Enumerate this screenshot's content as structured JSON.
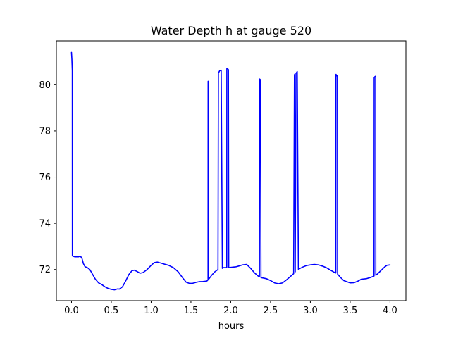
{
  "chart_data": {
    "type": "line",
    "title": "Water Depth h at gauge 520",
    "xlabel": "hours",
    "ylabel": "",
    "xlim": [
      -0.19,
      4.2
    ],
    "ylim": [
      70.65,
      81.9
    ],
    "xticks": [
      0.0,
      0.5,
      1.0,
      1.5,
      2.0,
      2.5,
      3.0,
      3.5,
      4.0
    ],
    "xtick_labels": [
      "0.0",
      "0.5",
      "1.0",
      "1.5",
      "2.0",
      "2.5",
      "3.0",
      "3.5",
      "4.0"
    ],
    "yticks": [
      72,
      74,
      76,
      78,
      80
    ],
    "ytick_labels": [
      "72",
      "74",
      "76",
      "78",
      "80"
    ],
    "grid": false,
    "series": [
      {
        "color": "#0000ff",
        "x": [
          0.0,
          0.005,
          0.01,
          0.011,
          0.015,
          0.04,
          0.07,
          0.09,
          0.11,
          0.13,
          0.15,
          0.17,
          0.2,
          0.23,
          0.26,
          0.3,
          0.34,
          0.38,
          0.42,
          0.46,
          0.5,
          0.54,
          0.58,
          0.6,
          0.64,
          0.68,
          0.72,
          0.76,
          0.79,
          0.82,
          0.86,
          0.9,
          0.95,
          1.0,
          1.04,
          1.08,
          1.12,
          1.16,
          1.22,
          1.28,
          1.34,
          1.4,
          1.44,
          1.48,
          1.52,
          1.56,
          1.6,
          1.65,
          1.7,
          1.715,
          1.716,
          1.722,
          1.723,
          1.76,
          1.8,
          1.84,
          1.845,
          1.86,
          1.88,
          1.895,
          1.9,
          1.95,
          1.951,
          1.96,
          1.971,
          1.975,
          2.02,
          2.07,
          2.1,
          2.15,
          2.2,
          2.25,
          2.3,
          2.35,
          2.36,
          2.362,
          2.372,
          2.38,
          2.45,
          2.5,
          2.55,
          2.6,
          2.65,
          2.7,
          2.75,
          2.79,
          2.8,
          2.802,
          2.81,
          2.82,
          2.825,
          2.83,
          2.835,
          2.85,
          2.855,
          2.9,
          2.95,
          3.0,
          3.05,
          3.1,
          3.15,
          3.2,
          3.25,
          3.3,
          3.32,
          3.322,
          3.33,
          3.34,
          3.342,
          3.38,
          3.42,
          3.46,
          3.5,
          3.55,
          3.6,
          3.64,
          3.7,
          3.75,
          3.79,
          3.8,
          3.802,
          3.81,
          3.82,
          3.822,
          3.84,
          3.87,
          3.9,
          3.93,
          3.96,
          4.0
        ],
        "y": [
          81.4,
          81.1,
          80.6,
          72.6,
          72.58,
          72.55,
          72.55,
          72.55,
          72.58,
          72.5,
          72.25,
          72.12,
          72.08,
          72.0,
          71.82,
          71.58,
          71.42,
          71.35,
          71.25,
          71.18,
          71.14,
          71.12,
          71.16,
          71.15,
          71.25,
          71.5,
          71.78,
          71.95,
          71.97,
          71.92,
          71.84,
          71.87,
          72.0,
          72.18,
          72.3,
          72.32,
          72.28,
          72.24,
          72.18,
          72.08,
          71.9,
          71.62,
          71.45,
          71.4,
          71.4,
          71.44,
          71.47,
          71.48,
          71.5,
          71.55,
          80.15,
          80.15,
          71.58,
          71.75,
          71.9,
          72.0,
          80.5,
          80.6,
          80.63,
          72.05,
          72.08,
          72.08,
          80.7,
          80.7,
          80.65,
          72.08,
          72.1,
          72.12,
          72.15,
          72.2,
          72.22,
          72.05,
          71.85,
          71.7,
          71.68,
          80.25,
          80.22,
          71.65,
          71.6,
          71.52,
          71.42,
          71.38,
          71.42,
          71.55,
          71.7,
          71.82,
          80.4,
          80.45,
          71.9,
          80.5,
          80.52,
          80.55,
          80.57,
          72.0,
          72.02,
          72.1,
          72.17,
          72.2,
          72.22,
          72.2,
          72.15,
          72.08,
          71.98,
          71.88,
          71.85,
          80.45,
          80.4,
          80.38,
          71.8,
          71.65,
          71.52,
          71.47,
          71.42,
          71.43,
          71.5,
          71.58,
          71.6,
          71.65,
          71.7,
          71.72,
          80.3,
          80.35,
          80.37,
          71.75,
          71.8,
          71.9,
          72.0,
          72.1,
          72.18,
          72.2
        ]
      }
    ]
  }
}
